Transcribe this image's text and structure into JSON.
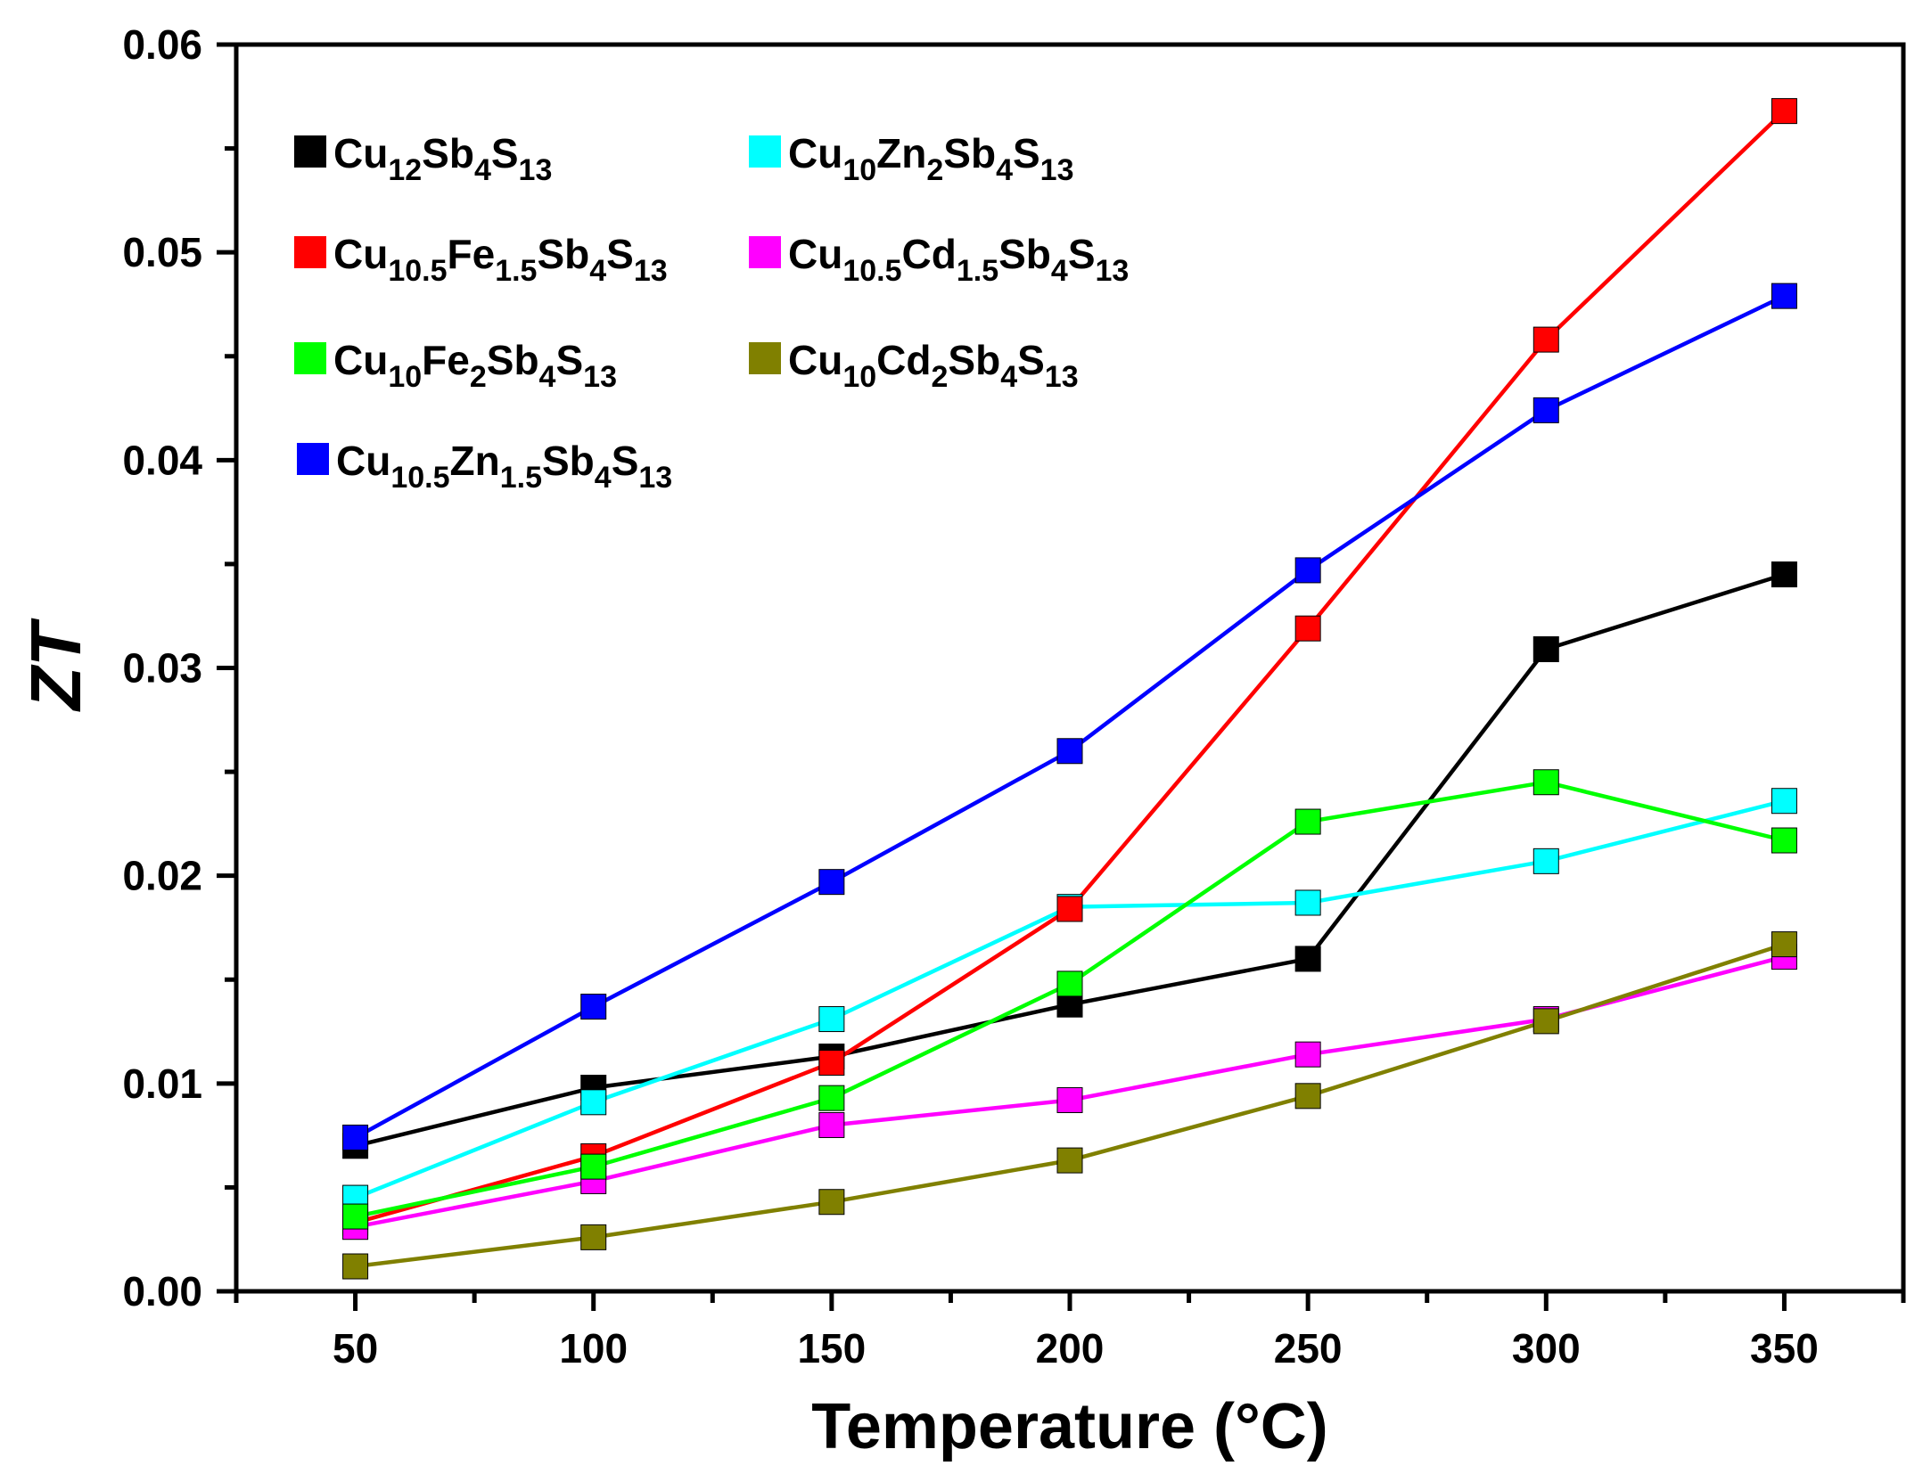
{
  "chart_data": {
    "type": "line",
    "title": "",
    "xlabel": "Temperature (°C)",
    "ylabel": "ZT",
    "xlim": [
      25,
      375
    ],
    "ylim": [
      0,
      0.06
    ],
    "x": [
      50,
      100,
      150,
      200,
      250,
      300,
      350
    ],
    "x_ticks": [
      50,
      100,
      150,
      200,
      250,
      300,
      350
    ],
    "x_tick_labels": [
      "50",
      "100",
      "150",
      "200",
      "250",
      "300",
      "350"
    ],
    "y_ticks": [
      0,
      0.01,
      0.02,
      0.03,
      0.04,
      0.05,
      0.06
    ],
    "y_tick_labels": [
      "0.00",
      "0.01",
      "0.02",
      "0.03",
      "0.04",
      "0.05",
      "0.06"
    ],
    "grid": false,
    "legend_position": "top-left",
    "series": [
      {
        "name": "Cu12Sb4S13",
        "label_parts": [
          {
            "t": "Cu",
            "sub": false
          },
          {
            "t": "12",
            "sub": true
          },
          {
            "t": "Sb",
            "sub": false
          },
          {
            "t": "4",
            "sub": true
          },
          {
            "t": "S",
            "sub": false
          },
          {
            "t": "13",
            "sub": true
          }
        ],
        "color": "#000000",
        "values": [
          0.007,
          0.0098,
          0.0113,
          0.0138,
          0.016,
          0.0309,
          0.0345
        ]
      },
      {
        "name": "Cu10Zn2Sb4S13",
        "label_parts": [
          {
            "t": "Cu",
            "sub": false
          },
          {
            "t": "10",
            "sub": true
          },
          {
            "t": "Zn",
            "sub": false
          },
          {
            "t": "2",
            "sub": true
          },
          {
            "t": "Sb",
            "sub": false
          },
          {
            "t": "4",
            "sub": true
          },
          {
            "t": "S",
            "sub": false
          },
          {
            "t": "13",
            "sub": true
          }
        ],
        "color": "#00ffff",
        "values": [
          0.0045,
          0.0091,
          0.0131,
          0.0185,
          0.0187,
          0.0207,
          0.0236
        ]
      },
      {
        "name": "Cu10.5Fe1.5Sb4S13",
        "label_parts": [
          {
            "t": "Cu",
            "sub": false
          },
          {
            "t": "10.5",
            "sub": true
          },
          {
            "t": "Fe",
            "sub": false
          },
          {
            "t": "1.5",
            "sub": true
          },
          {
            "t": "Sb",
            "sub": false
          },
          {
            "t": "4",
            "sub": true
          },
          {
            "t": "S",
            "sub": false
          },
          {
            "t": "13",
            "sub": true
          }
        ],
        "color": "#ff0000",
        "values": [
          0.0033,
          0.0065,
          0.011,
          0.0184,
          0.0319,
          0.0458,
          0.0568
        ]
      },
      {
        "name": "Cu10.5Cd1.5Sb4S13",
        "label_parts": [
          {
            "t": "Cu",
            "sub": false
          },
          {
            "t": "10.5",
            "sub": true
          },
          {
            "t": "Cd",
            "sub": false
          },
          {
            "t": "1.5",
            "sub": true
          },
          {
            "t": "Sb",
            "sub": false
          },
          {
            "t": "4",
            "sub": true
          },
          {
            "t": "S",
            "sub": false
          },
          {
            "t": "13",
            "sub": true
          }
        ],
        "color": "#ff00ff",
        "values": [
          0.0031,
          0.0053,
          0.008,
          0.0092,
          0.0114,
          0.0131,
          0.0161
        ]
      },
      {
        "name": "Cu10Fe2Sb4S13",
        "label_parts": [
          {
            "t": "Cu",
            "sub": false
          },
          {
            "t": "10",
            "sub": true
          },
          {
            "t": "Fe",
            "sub": false
          },
          {
            "t": "2",
            "sub": true
          },
          {
            "t": "Sb",
            "sub": false
          },
          {
            "t": "4",
            "sub": true
          },
          {
            "t": "S",
            "sub": false
          },
          {
            "t": "13",
            "sub": true
          }
        ],
        "color": "#00ff00",
        "values": [
          0.0036,
          0.006,
          0.0093,
          0.0148,
          0.0226,
          0.0245,
          0.0217
        ]
      },
      {
        "name": "Cu10Cd2Sb4S13",
        "label_parts": [
          {
            "t": "Cu",
            "sub": false
          },
          {
            "t": "10",
            "sub": true
          },
          {
            "t": "Cd",
            "sub": false
          },
          {
            "t": "2",
            "sub": true
          },
          {
            "t": "Sb",
            "sub": false
          },
          {
            "t": "4",
            "sub": true
          },
          {
            "t": "S",
            "sub": false
          },
          {
            "t": "13",
            "sub": true
          }
        ],
        "color": "#808000",
        "values": [
          0.0012,
          0.0026,
          0.0043,
          0.0063,
          0.0094,
          0.013,
          0.0167
        ]
      },
      {
        "name": "Cu10.5Zn1.5Sb4S13",
        "label_parts": [
          {
            "t": "Cu",
            "sub": false
          },
          {
            "t": "10.5",
            "sub": true
          },
          {
            "t": "Zn",
            "sub": false
          },
          {
            "t": "1.5",
            "sub": true
          },
          {
            "t": "Sb",
            "sub": false
          },
          {
            "t": "4",
            "sub": true
          },
          {
            "t": "S",
            "sub": false
          },
          {
            "t": "13",
            "sub": true
          }
        ],
        "color": "#0000ff",
        "values": [
          0.0074,
          0.0137,
          0.0197,
          0.026,
          0.0347,
          0.0424,
          0.0479
        ]
      }
    ]
  }
}
